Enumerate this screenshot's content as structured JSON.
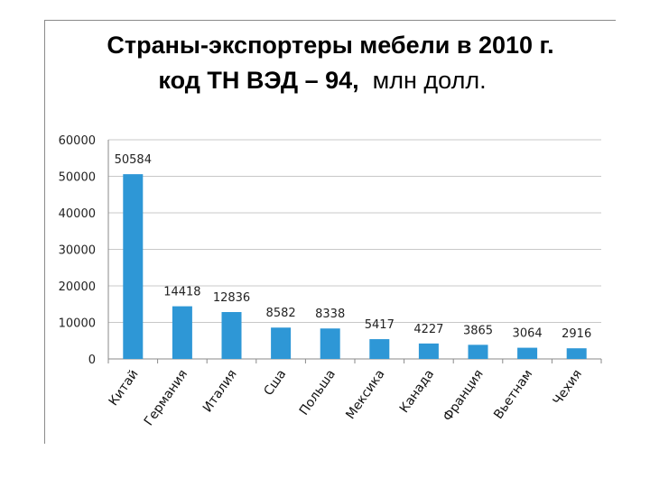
{
  "title": {
    "line1": "Страны-экспортеры мебели в 2010 г.",
    "line2_bold": "код ТН ВЭД – 94,",
    "line2_rest": "млн долл."
  },
  "colors": {
    "bar": "#2e97d6",
    "grid": "#c8c8c8",
    "axis": "#8a8a8a"
  },
  "chart_data": {
    "type": "bar",
    "title": "Страны-экспортеры мебели в 2010 г. код ТН ВЭД – 94, млн долл.",
    "xlabel": "",
    "ylabel": "",
    "ylim": [
      0,
      60000
    ],
    "yticks": [
      0,
      10000,
      20000,
      30000,
      40000,
      50000,
      60000
    ],
    "grid": true,
    "categories": [
      "Китай",
      "Германия",
      "Италия",
      "Сша",
      "Польша",
      "Мексика",
      "Канада",
      "Франция",
      "Вьетнам",
      "Чехия"
    ],
    "values": [
      50584,
      14418,
      12836,
      8582,
      8338,
      5417,
      4227,
      3865,
      3064,
      2916
    ],
    "data_labels": [
      "50584",
      "14418",
      "12836",
      "8582",
      "8338",
      "5417",
      "4227",
      "3865",
      "3064",
      "2916"
    ]
  }
}
